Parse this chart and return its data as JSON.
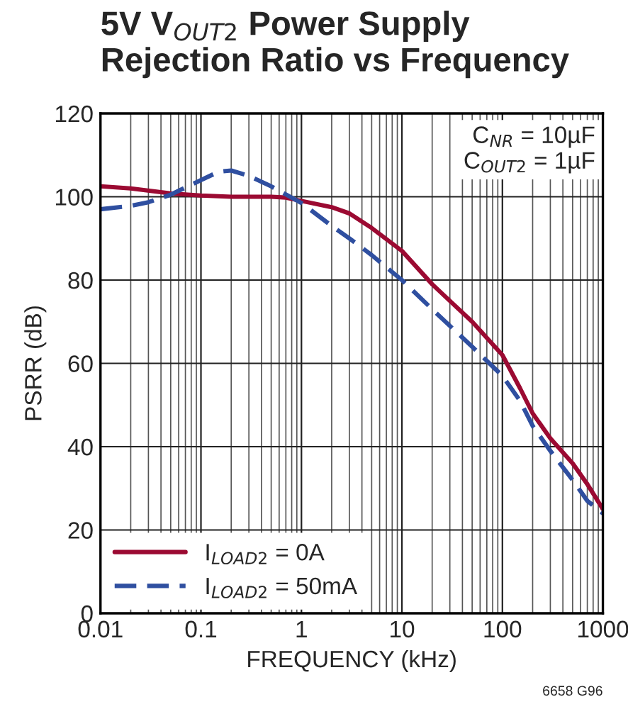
{
  "chart_data": {
    "type": "line",
    "title": "5V V$_{OUT2}$ Power Supply Rejection Ratio vs Frequency",
    "xlabel": "FREQUENCY (kHz)",
    "ylabel": "PSRR (dB)",
    "log": "x",
    "xlim": [
      0.01,
      1000
    ],
    "xticks": [
      0.01,
      0.1,
      1,
      10,
      100,
      1000
    ],
    "ylim": [
      0,
      120
    ],
    "yticks": [
      0,
      20,
      40,
      60,
      80,
      100,
      120
    ],
    "grid": true,
    "legend": "bottom left",
    "annotations": [
      "C$_{NR}$ = 10µF\nC$_{OUT2}$ = 1µF",
      "6658 G96"
    ],
    "series": [
      {
        "name": "I$_{LOAD2}$ = 0A",
        "color": "#9b0a32",
        "line_style": "solid",
        "x": [
          0.01,
          0.02,
          0.05,
          0.1,
          0.2,
          0.5,
          0.7,
          1,
          2,
          3,
          5,
          10,
          20,
          30,
          50,
          100,
          150,
          200,
          300,
          500,
          700,
          1000
        ],
        "values": [
          102.5,
          102,
          100.8,
          100.3,
          100,
          100,
          99.8,
          99,
          97.5,
          96,
          92.5,
          87,
          79,
          75,
          70,
          62,
          54,
          48,
          42,
          36,
          31,
          25
        ]
      },
      {
        "name": "I$_{LOAD2}$ = 50mA",
        "color": "#2f4fa0",
        "line_style": "dashed",
        "x": [
          0.01,
          0.02,
          0.03,
          0.05,
          0.1,
          0.15,
          0.2,
          0.3,
          0.5,
          1,
          2,
          3,
          5,
          10,
          20,
          30,
          50,
          100,
          150,
          200,
          300,
          500,
          700,
          1000
        ],
        "values": [
          97,
          97.8,
          98.7,
          100.5,
          104,
          106,
          106.3,
          105,
          102.5,
          98.5,
          93,
          90,
          86,
          80,
          73,
          69,
          64,
          57,
          51,
          45,
          39,
          32,
          27,
          24
        ]
      }
    ]
  }
}
